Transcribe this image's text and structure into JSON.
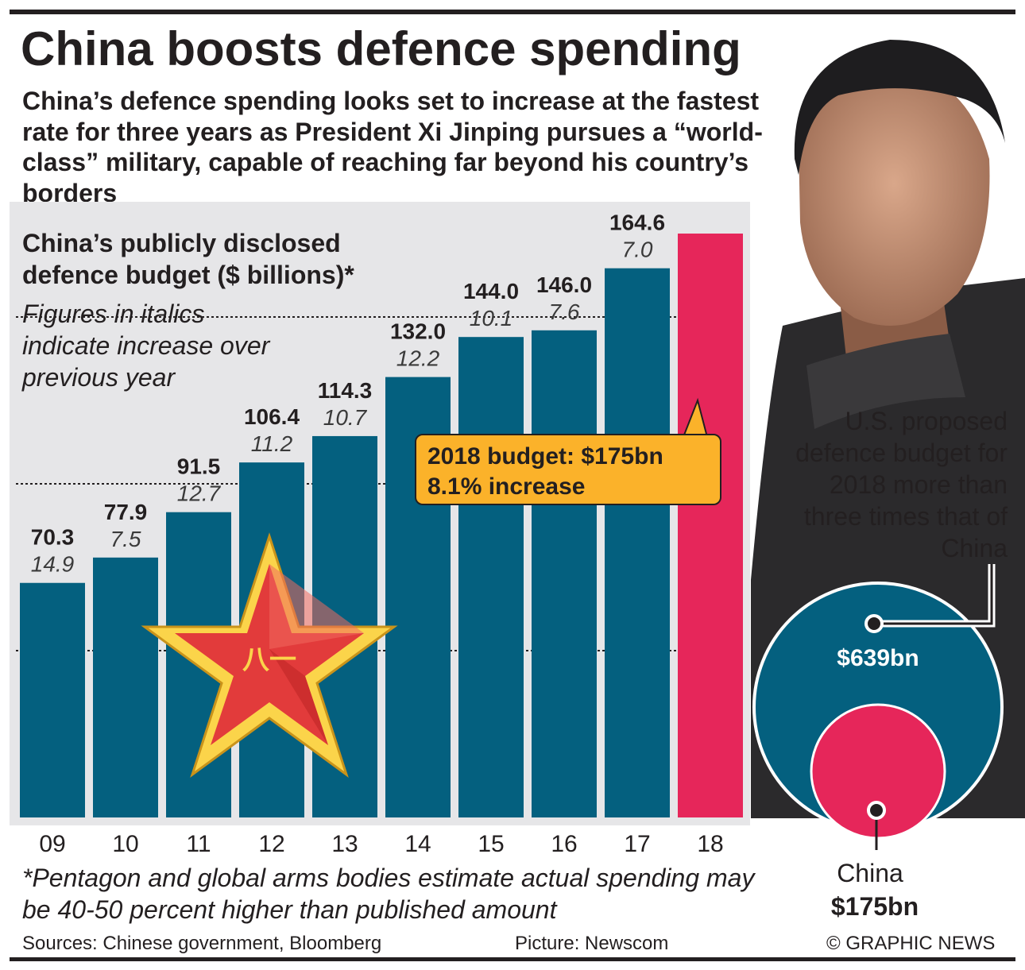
{
  "title": "China boosts defence spending",
  "subtitle": "China’s defence spending looks set to increase at the fastest rate for three years as President Xi Jinping pursues a “world-class” military, capable of reaching far beyond his country’s borders",
  "chart_heading": "China’s publicly disclosed defence budget ($ billions)*",
  "italic_note": "Figures in italics indicate increase over previous year",
  "callout": {
    "line1": "2018 budget: $175bn",
    "line2": "8.1% increase"
  },
  "us_comparison": {
    "text": "U.S. proposed defence budget for 2018 more than three times that of China",
    "us_value": "$639bn",
    "china_label": "China",
    "china_value": "$175bn"
  },
  "footnote": "*Pentagon and global arms bodies estimate actual spending may be 40-50 percent higher than published amount",
  "sources": "Sources: Chinese government, Bloomberg",
  "picture_credit": "Picture: Newscom",
  "copyright": "© GRAPHIC NEWS",
  "colors": {
    "bar": "#04607f",
    "highlight": "#e6265a",
    "callout": "#fbb22a",
    "chart_bg": "#e6e6e8"
  },
  "emblem_text": "八一",
  "chart_data": {
    "type": "bar",
    "title": "China’s publicly disclosed defence budget ($ billions)*",
    "categories": [
      "09",
      "10",
      "11",
      "12",
      "13",
      "14",
      "15",
      "16",
      "17",
      "18"
    ],
    "values": [
      70.3,
      77.9,
      91.5,
      106.4,
      114.3,
      132.0,
      144.0,
      146.0,
      164.6,
      175
    ],
    "value_labels": [
      "70.3",
      "77.9",
      "91.5",
      "106.4",
      "114.3",
      "132.0",
      "144.0",
      "146.0",
      "164.6",
      ""
    ],
    "increase_labels": [
      "14.9",
      "7.5",
      "12.7",
      "11.2",
      "10.7",
      "12.2",
      "10.1",
      "7.6",
      "7.0",
      ""
    ],
    "ylim": [
      0,
      180
    ],
    "highlight_category": "18",
    "grid": "dotted lines at 50, 100, 150"
  }
}
